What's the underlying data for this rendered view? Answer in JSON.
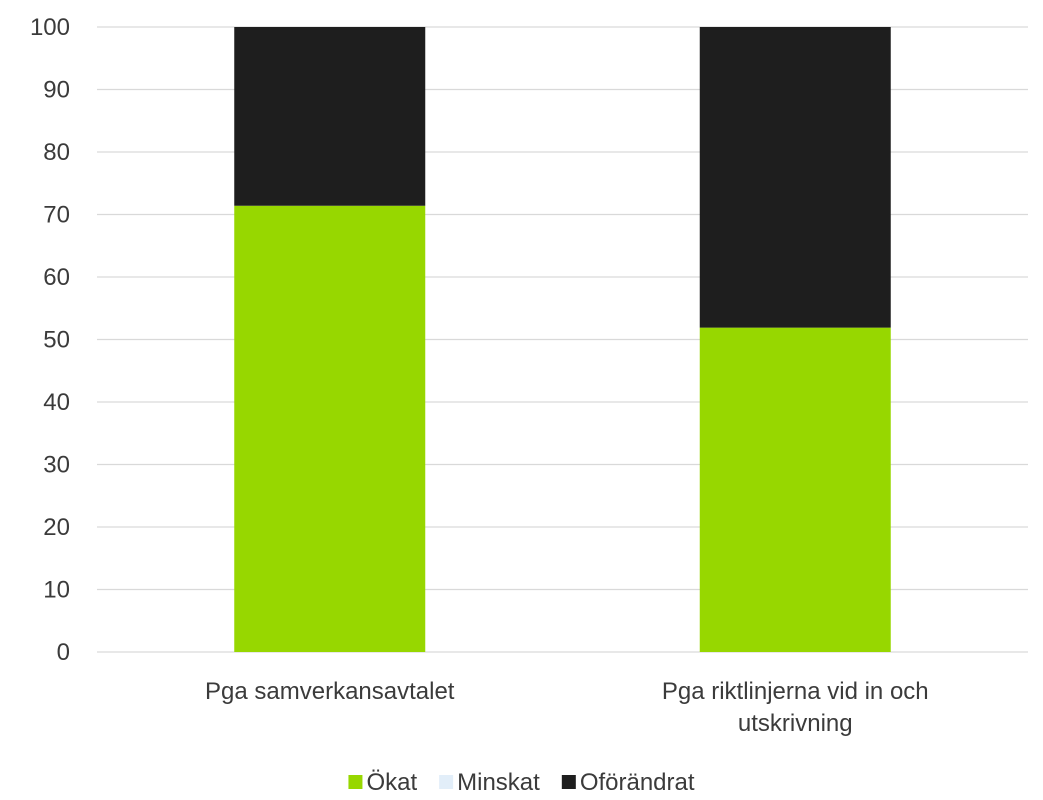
{
  "chart_data": {
    "type": "bar",
    "stacked": true,
    "categories": [
      [
        "Pga samverkansavtalet"
      ],
      [
        "Pga riktlinjerna vid in och",
        "utskrivning"
      ]
    ],
    "series": [
      {
        "name": "Ökat",
        "color": "#97d700",
        "values": [
          71.4,
          51.9
        ]
      },
      {
        "name": "Minskat",
        "color": "#e2eef9",
        "values": [
          0,
          0
        ]
      },
      {
        "name": "Oförändrat",
        "color": "#1e1e1e",
        "values": [
          28.6,
          48.1
        ]
      }
    ],
    "yticks": [
      "0",
      "10",
      "20",
      "30",
      "40",
      "50",
      "60",
      "70",
      "80",
      "90",
      "100"
    ],
    "ylim": [
      0,
      100
    ],
    "grid": true,
    "legend_position": "bottom"
  }
}
